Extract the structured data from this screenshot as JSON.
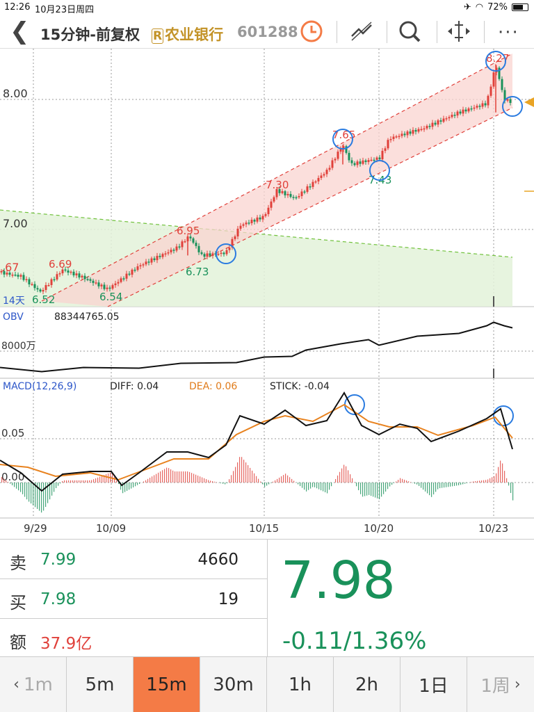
{
  "status": {
    "time": "12:26",
    "date": "10月23日周四",
    "battery": "72%",
    "battery_level": 0.72
  },
  "header": {
    "title": "15分钟-前复权",
    "stock_name": "农业银行",
    "stock_code": "601288",
    "icons": [
      "back-icon",
      "clock-icon",
      "draw-line-icon",
      "search-icon",
      "resize-icon",
      "more-icon"
    ]
  },
  "main_chart": {
    "y_labels": [
      "8.00",
      "7.00",
      ".67"
    ],
    "price_labels_red": [
      "6.69",
      "6.95",
      "7.30",
      "7.65",
      "8.27"
    ],
    "price_labels_green": [
      "6.52",
      "6.54",
      "6.73",
      "7.43"
    ],
    "period_label": "14天"
  },
  "obv": {
    "label": "OBV",
    "value": "88344765.05",
    "axis_label": "8000万"
  },
  "macd": {
    "label": "MACD(12,26,9)",
    "diff": "DIFF: 0.04",
    "dea": "DEA: 0.06",
    "stick": "STICK: -0.04",
    "axis_labels": [
      "0.05",
      "0.00"
    ]
  },
  "x_dates": [
    "9/29",
    "10/09",
    "10/15",
    "10/20",
    "10/23"
  ],
  "chart_data": {
    "type": "line",
    "x": [
      "9/29",
      "10/09",
      "10/15",
      "10/20",
      "10/23"
    ],
    "price_points": [
      6.67,
      6.52,
      6.69,
      6.54,
      6.95,
      6.73,
      7.3,
      7.65,
      7.43,
      8.27,
      7.98
    ],
    "ylim": [
      6.4,
      8.4
    ]
  },
  "quote": {
    "sell_label": "卖",
    "sell_price": "7.99",
    "sell_volume": "4660",
    "buy_label": "买",
    "buy_price": "7.98",
    "buy_volume": "19",
    "amount_label": "额",
    "amount": "37.9亿",
    "price": "7.98",
    "change": "-0.11/1.36%"
  },
  "tabs": [
    "1m",
    "5m",
    "15m",
    "30m",
    "1h",
    "2h",
    "1日",
    "1周"
  ],
  "active_tab": "15m",
  "colors": {
    "up": "#e0403a",
    "down": "#19915a",
    "accent": "#f47b46",
    "gold": "#c39328"
  }
}
